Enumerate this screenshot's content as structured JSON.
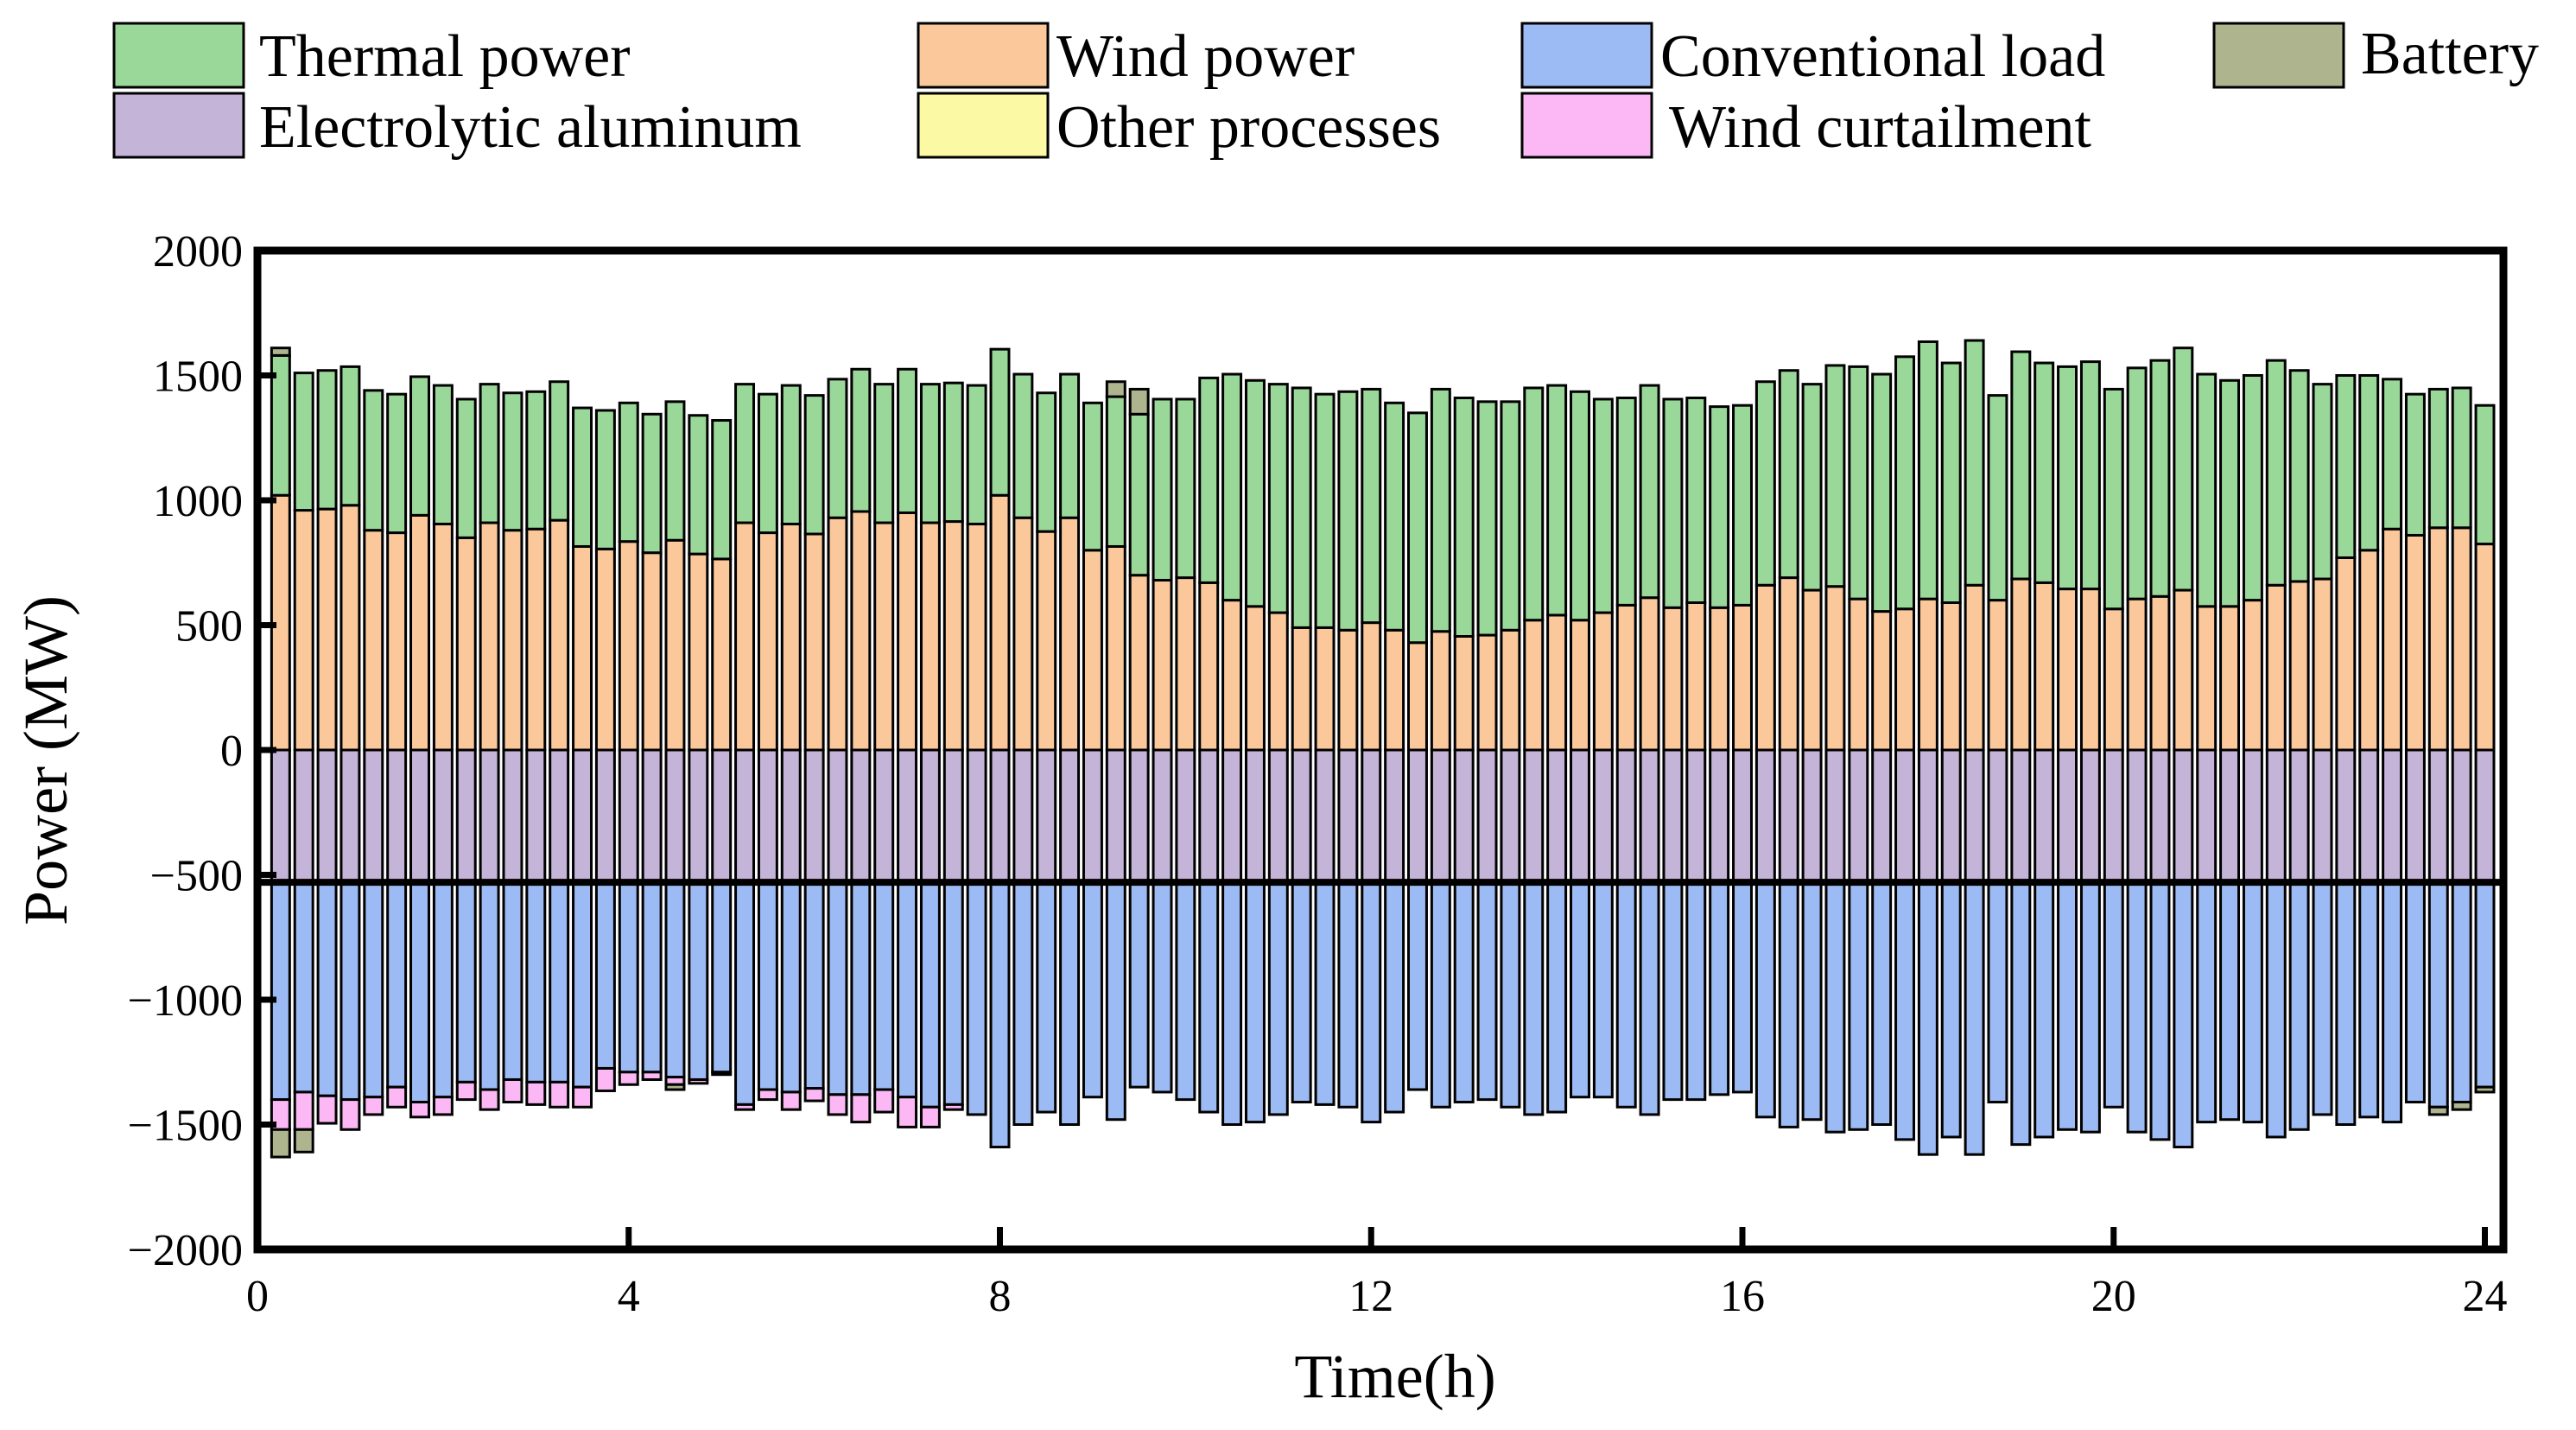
{
  "chart_data": {
    "type": "bar",
    "stacked": true,
    "xlabel": "Time(h)",
    "ylabel": "Power (MW)",
    "xlim": [
      0,
      24.2
    ],
    "ylim": [
      -2000,
      2000
    ],
    "xticks": [
      0,
      4,
      8,
      12,
      16,
      20,
      24
    ],
    "yticks": [
      2000,
      1500,
      1000,
      500,
      0,
      -500,
      -1000,
      -1500,
      -2000
    ],
    "interval_h": 0.25,
    "legend": [
      {
        "key": "thermal",
        "label": "Thermal power",
        "color": "#9ad89a"
      },
      {
        "key": "wind",
        "label": "Wind power",
        "color": "#fbc89b"
      },
      {
        "key": "load",
        "label": "Conventional load",
        "color": "#9cbaf3"
      },
      {
        "key": "battery",
        "label": "Battery",
        "color": "#adb48e"
      },
      {
        "key": "aluminum",
        "label": "Electrolytic aluminum",
        "color": "#c4b4d8"
      },
      {
        "key": "other",
        "label": "Other processes",
        "color": "#fbf9a4"
      },
      {
        "key": "curtail",
        "label": "Wind curtailment",
        "color": "#fbb8f4"
      }
    ],
    "electrolytic_aluminum_MW": -530,
    "series": {
      "wind": [
        1020,
        960,
        965,
        980,
        880,
        870,
        940,
        905,
        850,
        910,
        880,
        885,
        920,
        815,
        805,
        835,
        790,
        840,
        785,
        765,
        910,
        870,
        905,
        865,
        930,
        955,
        910,
        950,
        910,
        915,
        905,
        1020,
        930,
        875,
        930,
        800,
        815,
        700,
        680,
        690,
        670,
        600,
        575,
        550,
        490,
        490,
        480,
        510,
        480,
        430,
        475,
        455,
        460,
        480,
        520,
        540,
        520,
        550,
        580,
        610,
        570,
        590,
        570,
        580,
        660,
        690,
        640,
        655,
        605,
        555,
        565,
        605,
        590,
        660,
        600,
        685,
        670,
        645,
        645,
        565,
        605,
        615,
        640,
        575,
        575,
        600,
        660,
        675,
        685,
        770,
        800,
        885,
        860,
        890,
        890,
        825
      ],
      "thermal": [
        560,
        550,
        555,
        555,
        560,
        555,
        555,
        555,
        555,
        555,
        550,
        550,
        555,
        555,
        555,
        555,
        555,
        555,
        555,
        555,
        555,
        555,
        555,
        555,
        555,
        570,
        555,
        575,
        555,
        555,
        555,
        585,
        575,
        555,
        575,
        590,
        600,
        645,
        725,
        715,
        820,
        905,
        905,
        915,
        960,
        935,
        955,
        935,
        910,
        920,
        970,
        955,
        935,
        915,
        930,
        920,
        915,
        855,
        830,
        850,
        835,
        820,
        805,
        800,
        815,
        830,
        825,
        885,
        930,
        950,
        1010,
        1030,
        960,
        980,
        820,
        910,
        880,
        890,
        910,
        880,
        925,
        945,
        970,
        930,
        905,
        900,
        900,
        845,
        780,
        730,
        700,
        600,
        565,
        555,
        560,
        555
      ],
      "battery": [
        30,
        0,
        0,
        0,
        0,
        0,
        0,
        0,
        0,
        0,
        0,
        0,
        0,
        0,
        0,
        0,
        0,
        0,
        0,
        0,
        0,
        0,
        0,
        0,
        0,
        0,
        0,
        0,
        0,
        0,
        0,
        0,
        0,
        0,
        0,
        0,
        60,
        100,
        0,
        0,
        0,
        0,
        0,
        0,
        0,
        0,
        0,
        0,
        0,
        0,
        0,
        0,
        0,
        0,
        0,
        0,
        0,
        0,
        0,
        0,
        0,
        0,
        0,
        0,
        0,
        0,
        0,
        0,
        0,
        0,
        0,
        0,
        0,
        0,
        0,
        0,
        0,
        0,
        0,
        0,
        0,
        0,
        0,
        0,
        0,
        0,
        0,
        0,
        0,
        0,
        0,
        0,
        0,
        0,
        0,
        0
      ],
      "load": [
        -870,
        -840,
        -855,
        -870,
        -860,
        -820,
        -880,
        -860,
        -800,
        -830,
        -790,
        -800,
        -800,
        -820,
        -745,
        -760,
        -760,
        -780,
        -790,
        -760,
        -890,
        -830,
        -840,
        -825,
        -850,
        -850,
        -830,
        -860,
        -900,
        -890,
        -930,
        -1060,
        -970,
        -920,
        -970,
        -860,
        -950,
        -820,
        -840,
        -870,
        -920,
        -970,
        -960,
        -930,
        -880,
        -890,
        -900,
        -960,
        -920,
        -830,
        -900,
        -880,
        -870,
        -900,
        -930,
        -920,
        -860,
        -860,
        -900,
        -930,
        -870,
        -870,
        -850,
        -840,
        -940,
        -980,
        -950,
        -1000,
        -990,
        -970,
        -1030,
        -1090,
        -1020,
        -1090,
        -880,
        -1050,
        -1020,
        -990,
        -1000,
        -900,
        -1000,
        -1030,
        -1060,
        -960,
        -950,
        -960,
        -1020,
        -990,
        -930,
        -970,
        -940,
        -960,
        -880,
        -900,
        -880,
        -820
      ],
      "battery_discharge": [
        -110,
        -90,
        0,
        0,
        0,
        0,
        0,
        0,
        0,
        0,
        0,
        0,
        0,
        0,
        0,
        0,
        0,
        -20,
        0,
        0,
        0,
        0,
        0,
        0,
        0,
        0,
        0,
        0,
        0,
        0,
        0,
        0,
        0,
        0,
        0,
        0,
        0,
        0,
        0,
        0,
        0,
        0,
        0,
        0,
        0,
        0,
        0,
        0,
        0,
        0,
        0,
        0,
        0,
        0,
        0,
        0,
        0,
        0,
        0,
        0,
        0,
        0,
        0,
        0,
        0,
        0,
        0,
        0,
        0,
        0,
        0,
        0,
        0,
        0,
        0,
        0,
        0,
        0,
        0,
        0,
        0,
        0,
        0,
        0,
        0,
        0,
        0,
        0,
        0,
        0,
        0,
        0,
        0,
        -30,
        -30,
        -20
      ],
      "curtail": [
        -120,
        -150,
        -110,
        -120,
        -70,
        -80,
        -60,
        -70,
        -70,
        -80,
        -90,
        -90,
        -100,
        -80,
        -90,
        -50,
        -30,
        -30,
        -15,
        -10,
        -20,
        -40,
        -70,
        -50,
        -80,
        -110,
        -90,
        -120,
        -80,
        -20,
        0,
        0,
        0,
        0,
        0,
        0,
        0,
        0,
        0,
        0,
        0,
        0,
        0,
        0,
        0,
        0,
        0,
        0,
        0,
        0,
        0,
        0,
        0,
        0,
        0,
        0,
        0,
        0,
        0,
        0,
        0,
        0,
        0,
        0,
        0,
        0,
        0,
        0,
        0,
        0,
        0,
        0,
        0,
        0,
        0,
        0,
        0,
        0,
        0,
        0,
        0,
        0,
        0,
        0,
        0,
        0,
        0,
        0,
        0,
        0,
        0,
        0,
        0,
        0,
        0,
        0
      ]
    }
  }
}
